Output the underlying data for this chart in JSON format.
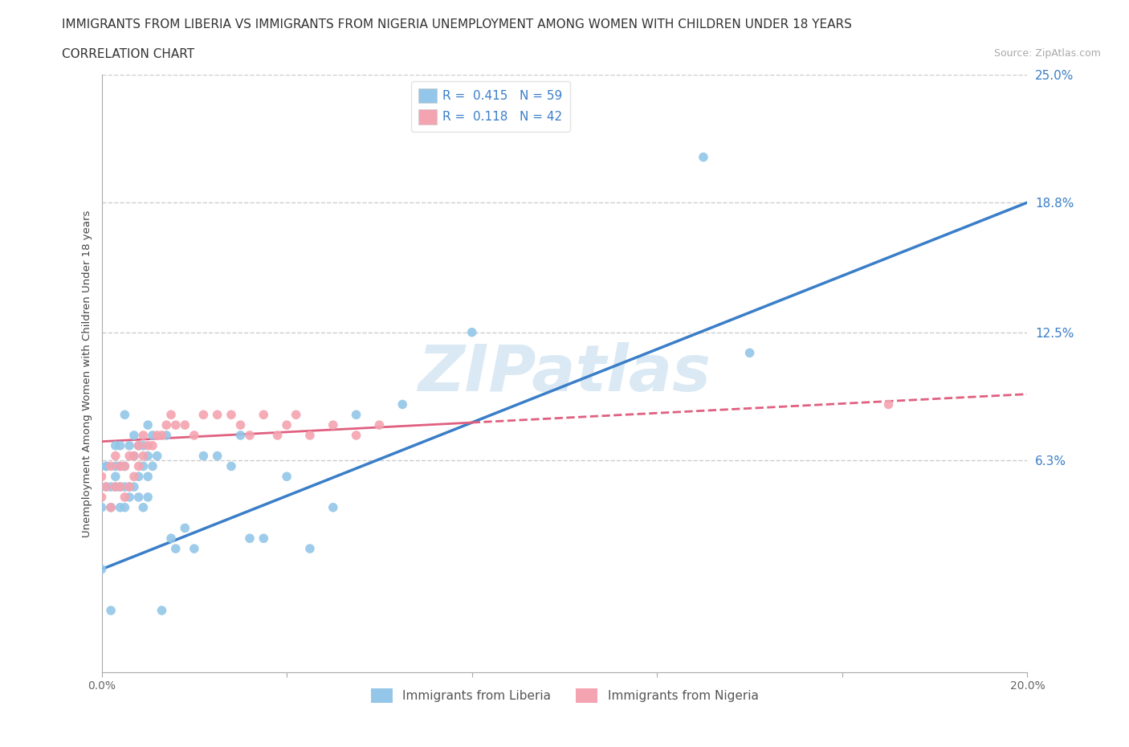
{
  "title_line1": "IMMIGRANTS FROM LIBERIA VS IMMIGRANTS FROM NIGERIA UNEMPLOYMENT AMONG WOMEN WITH CHILDREN UNDER 18 YEARS",
  "title_line2": "CORRELATION CHART",
  "source": "Source: ZipAtlas.com",
  "ylabel": "Unemployment Among Women with Children Under 18 years",
  "xmin": 0.0,
  "xmax": 0.2,
  "ymin": -0.04,
  "ymax": 0.25,
  "ytick_vals": [
    0.063,
    0.125,
    0.188,
    0.25
  ],
  "ytick_labels": [
    "6.3%",
    "12.5%",
    "18.8%",
    "25.0%"
  ],
  "xticks": [
    0.0,
    0.2
  ],
  "xtick_labels": [
    "0.0%",
    "20.0%"
  ],
  "liberia_R": 0.415,
  "liberia_N": 59,
  "nigeria_R": 0.118,
  "nigeria_N": 42,
  "liberia_color": "#93C6E8",
  "nigeria_color": "#F4A3B0",
  "trend_liberia_color": "#3A7EC8",
  "trend_nigeria_color": "#E06080",
  "background_color": "#FFFFFF",
  "grid_color": "#CCCCCC",
  "title_fontsize": 11,
  "liberia_x": [
    0.0,
    0.0,
    0.001,
    0.001,
    0.001,
    0.002,
    0.002,
    0.002,
    0.003,
    0.003,
    0.003,
    0.003,
    0.004,
    0.004,
    0.004,
    0.004,
    0.005,
    0.005,
    0.005,
    0.005,
    0.006,
    0.006,
    0.006,
    0.007,
    0.007,
    0.007,
    0.008,
    0.008,
    0.008,
    0.009,
    0.009,
    0.009,
    0.01,
    0.01,
    0.01,
    0.01,
    0.011,
    0.011,
    0.012,
    0.013,
    0.014,
    0.015,
    0.016,
    0.018,
    0.02,
    0.022,
    0.025,
    0.028,
    0.03,
    0.032,
    0.035,
    0.04,
    0.045,
    0.05,
    0.055,
    0.065,
    0.08,
    0.13,
    0.14
  ],
  "liberia_y": [
    0.04,
    0.01,
    0.05,
    0.06,
    0.06,
    0.04,
    0.05,
    -0.01,
    0.05,
    0.055,
    0.06,
    0.07,
    0.04,
    0.05,
    0.06,
    0.07,
    0.04,
    0.05,
    0.06,
    0.085,
    0.045,
    0.05,
    0.07,
    0.05,
    0.065,
    0.075,
    0.045,
    0.055,
    0.07,
    0.04,
    0.06,
    0.07,
    0.045,
    0.055,
    0.065,
    0.08,
    0.06,
    0.075,
    0.065,
    -0.01,
    0.075,
    0.025,
    0.02,
    0.03,
    0.02,
    0.065,
    0.065,
    0.06,
    0.075,
    0.025,
    0.025,
    0.055,
    0.02,
    0.04,
    0.085,
    0.09,
    0.125,
    0.21,
    0.115
  ],
  "nigeria_x": [
    0.0,
    0.0,
    0.001,
    0.002,
    0.002,
    0.003,
    0.003,
    0.004,
    0.004,
    0.005,
    0.005,
    0.006,
    0.006,
    0.007,
    0.007,
    0.008,
    0.008,
    0.009,
    0.009,
    0.01,
    0.011,
    0.012,
    0.013,
    0.014,
    0.015,
    0.016,
    0.018,
    0.02,
    0.022,
    0.025,
    0.028,
    0.03,
    0.032,
    0.035,
    0.038,
    0.04,
    0.042,
    0.045,
    0.05,
    0.055,
    0.06,
    0.17
  ],
  "nigeria_y": [
    0.045,
    0.055,
    0.05,
    0.04,
    0.06,
    0.05,
    0.065,
    0.05,
    0.06,
    0.045,
    0.06,
    0.05,
    0.065,
    0.055,
    0.065,
    0.06,
    0.07,
    0.065,
    0.075,
    0.07,
    0.07,
    0.075,
    0.075,
    0.08,
    0.085,
    0.08,
    0.08,
    0.075,
    0.085,
    0.085,
    0.085,
    0.08,
    0.075,
    0.085,
    0.075,
    0.08,
    0.085,
    0.075,
    0.08,
    0.075,
    0.08,
    0.09
  ],
  "trend_lib_x0": 0.0,
  "trend_lib_y0": 0.01,
  "trend_lib_x1": 0.2,
  "trend_lib_y1": 0.188,
  "trend_nig_x0": 0.0,
  "trend_nig_y0": 0.072,
  "trend_nig_x1": 0.2,
  "trend_nig_y1": 0.095
}
